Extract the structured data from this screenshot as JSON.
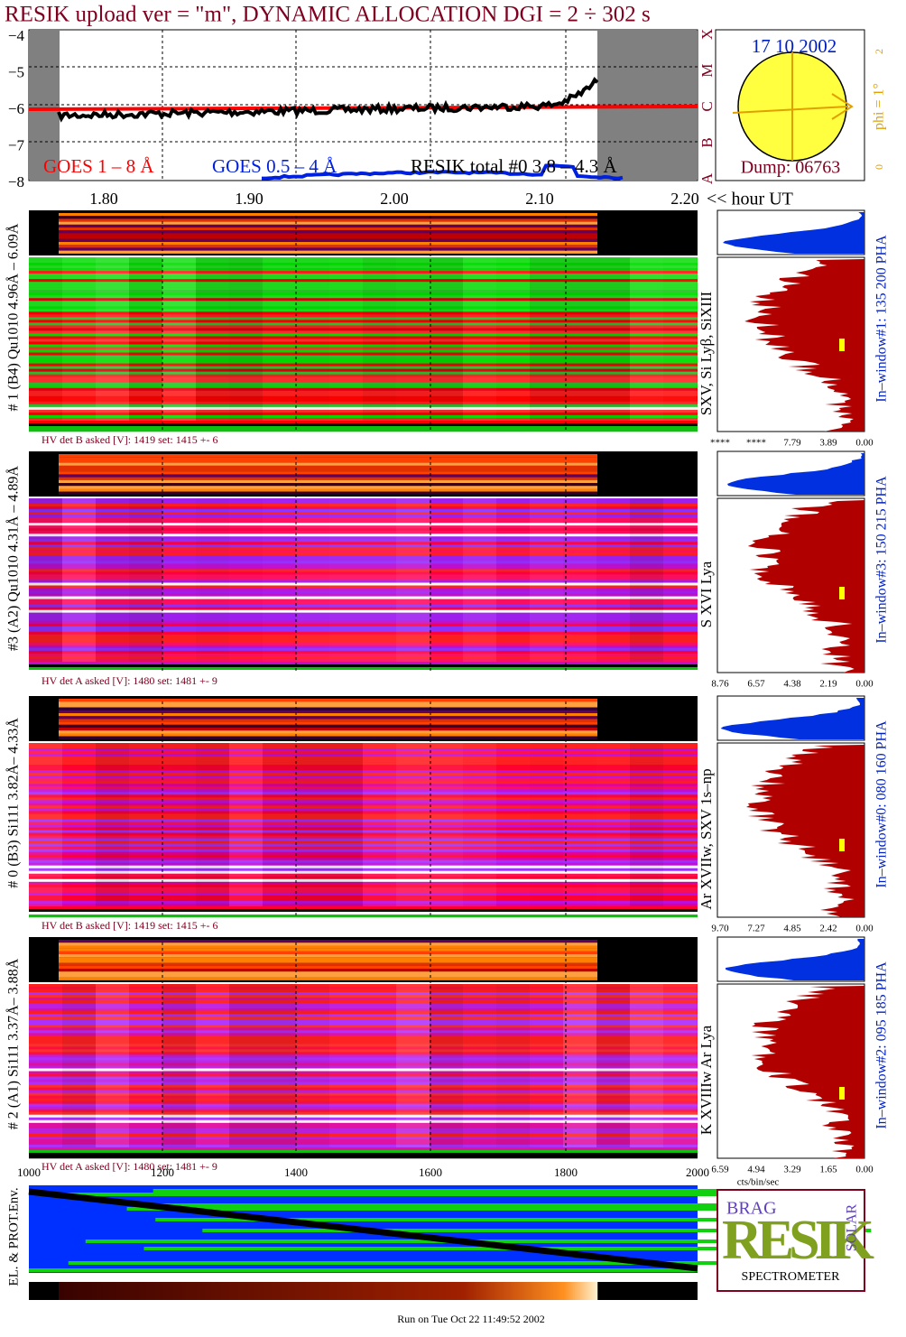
{
  "title": "RESIK upload ver = \"m\", DYNAMIC ALLOCATION  DGI =   2 ÷ 302 s",
  "goes_panel": {
    "yticks": [
      "−4",
      "−5",
      "−6",
      "−7",
      "−8"
    ],
    "classes": [
      "X",
      "M",
      "C",
      "B",
      "A"
    ],
    "legend": [
      "GOES 1 – 8 Å",
      "GOES 0.5 – 4 Å",
      "RESIK total #0  3.8 – 4.3 Å"
    ],
    "hour_ticks": [
      "1.80",
      "1.90",
      "2.00",
      "2.10",
      "2.20"
    ],
    "hour_unit": "<< hour UT"
  },
  "sun": {
    "date": "17 10 2002",
    "dump": "Dump: 06763",
    "phi": "phi =  1°",
    "scale": [
      "0",
      "2"
    ]
  },
  "channels": [
    {
      "label": "# 1 (B4) Qu1010 4.96Å – 6.09Å",
      "hv": "HV det B asked [V]:  1419 set:  1415 +-    6",
      "lines": "SXV, Si Lyβ, SiXIII",
      "window": "In–window#1:  135 200 PHA",
      "ticks": [
        "****",
        "****",
        "7.79",
        "3.89",
        "0.00"
      ]
    },
    {
      "label": "#3 (A2) Qu1010  4.31Å – 4.89Å",
      "hv": "HV det A asked [V]:  1480 set:  1481 +-    9",
      "lines": "S XVI Lya",
      "window": "In–window#3:  150 215 PHA",
      "ticks": [
        "8.76",
        "6.57",
        "4.38",
        "2.19",
        "0.00"
      ]
    },
    {
      "label": "# 0 (B3) Si111  3.82Å– 4.33Å",
      "hv": "HV det B asked [V]:  1419 set:  1415 +-    6",
      "lines": "Ar XVIIw, SXV 1s–np",
      "window": "In–window#0:  080 160 PHA",
      "ticks": [
        "9.70",
        "7.27",
        "4.85",
        "2.42",
        "0.00"
      ]
    },
    {
      "label": "# 2 (A1) Si111  3.37Å– 3.88Å",
      "hv": "HV det A asked [V]:  1480 set:  1481 +-    9",
      "lines": "K XVIIIw  Ar Lya",
      "window": "In–window#2:  095 185 PHA",
      "ticks": [
        "6.59",
        "4.94",
        "3.29",
        "1.65",
        "0.00"
      ]
    }
  ],
  "pha_unit": "cts/bin/sec",
  "bin_ticks": [
    "1000",
    "1200",
    "1400",
    "1600",
    "1800",
    "2000"
  ],
  "env_label": "EL. & PROT.Env.",
  "logo": {
    "bragg": "BRAG",
    "brand": "RESIK",
    "solar": "SOLAR",
    "subtitle": "SPECTROMETER"
  },
  "footer": "Run on Tue Oct 22 11:49:52 2002"
}
